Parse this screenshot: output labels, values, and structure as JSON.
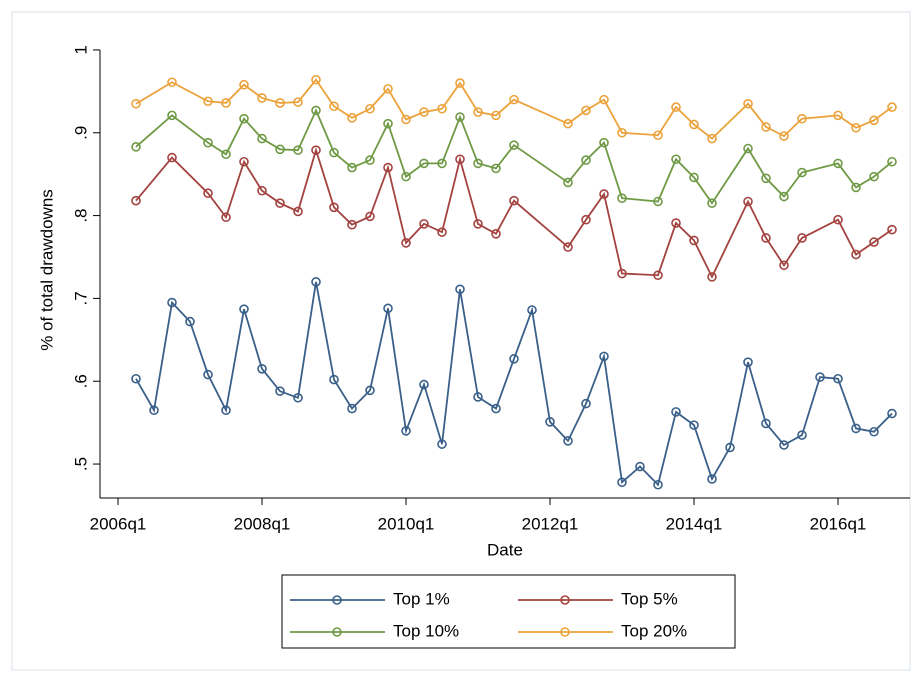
{
  "chart_data": {
    "type": "line",
    "ylabel": "% of total drawdowns",
    "xlabel": "Date",
    "xlim": [
      "2005q4",
      "2017q1"
    ],
    "xticks": [
      "2006q1",
      "2008q1",
      "2010q1",
      "2012q1",
      "2014q1",
      "2016q1"
    ],
    "ylim": [
      0.459,
      1.012
    ],
    "yticks": [
      {
        "value": 0.5,
        "label": ".5"
      },
      {
        "value": 0.6,
        "label": ".6"
      },
      {
        "value": 0.7,
        "label": ".7"
      },
      {
        "value": 0.8,
        "label": ".8"
      },
      {
        "value": 0.9,
        "label": ".9"
      },
      1
    ],
    "grid": false,
    "legend": "bottom",
    "series": [
      {
        "name": "Top 1%",
        "color": "#3a6089",
        "x": [
          "2006q2",
          "2006q3",
          "2006q4",
          "2007q1",
          "2007q2",
          "2007q3",
          "2007q4",
          "2008q1",
          "2008q2",
          "2008q3",
          "2008q4",
          "2009q1",
          "2009q2",
          "2009q3",
          "2009q4",
          "2010q1",
          "2010q2",
          "2010q3",
          "2010q4",
          "2011q1",
          "2011q2",
          "2011q3",
          "2011q4",
          "2012q1",
          "2012q2",
          "2012q3",
          "2012q4",
          "2013q1",
          "2013q2",
          "2013q3",
          "2013q4",
          "2014q1",
          "2014q2",
          "2014q3",
          "2014q4",
          "2015q1",
          "2015q2",
          "2015q3",
          "2015q4",
          "2016q1",
          "2016q2",
          "2016q3",
          "2016q4"
        ],
        "values": [
          0.603,
          0.565,
          0.695,
          0.672,
          0.608,
          0.565,
          0.687,
          0.615,
          0.588,
          0.58,
          0.72,
          0.602,
          0.567,
          0.589,
          0.688,
          0.54,
          0.596,
          0.524,
          0.711,
          0.581,
          0.567,
          0.627,
          0.686,
          0.551,
          0.528,
          0.573,
          0.63,
          0.478,
          0.497,
          0.475,
          0.563,
          0.547,
          0.482,
          0.52,
          0.623,
          0.549,
          0.523,
          0.535,
          0.605,
          0.603,
          0.543,
          0.539,
          0.561
        ]
      },
      {
        "name": "Top 5%",
        "color": "#a3423f",
        "x": [
          "2006q2",
          "2006q4",
          "2007q2",
          "2007q3",
          "2007q4",
          "2008q1",
          "2008q2",
          "2008q3",
          "2008q4",
          "2009q1",
          "2009q2",
          "2009q3",
          "2009q4",
          "2010q1",
          "2010q2",
          "2010q3",
          "2010q4",
          "2011q1",
          "2011q2",
          "2011q3",
          "2012q2",
          "2012q3",
          "2012q4",
          "2013q1",
          "2013q3",
          "2013q4",
          "2014q1",
          "2014q2",
          "2014q4",
          "2015q1",
          "2015q2",
          "2015q3",
          "2016q1",
          "2016q2",
          "2016q3",
          "2016q4"
        ],
        "values": [
          0.818,
          0.87,
          0.827,
          0.798,
          0.865,
          0.83,
          0.815,
          0.805,
          0.879,
          0.81,
          0.789,
          0.799,
          0.858,
          0.767,
          0.79,
          0.78,
          0.868,
          0.79,
          0.778,
          0.818,
          0.762,
          0.795,
          0.826,
          0.73,
          0.728,
          0.791,
          0.77,
          0.726,
          0.817,
          0.773,
          0.74,
          0.773,
          0.795,
          0.753,
          0.768,
          0.783
        ]
      },
      {
        "name": "Top 10%",
        "color": "#6f9a45",
        "x": [
          "2006q2",
          "2006q4",
          "2007q2",
          "2007q3",
          "2007q4",
          "2008q1",
          "2008q2",
          "2008q3",
          "2008q4",
          "2009q1",
          "2009q2",
          "2009q3",
          "2009q4",
          "2010q1",
          "2010q2",
          "2010q3",
          "2010q4",
          "2011q1",
          "2011q2",
          "2011q3",
          "2012q2",
          "2012q3",
          "2012q4",
          "2013q1",
          "2013q3",
          "2013q4",
          "2014q1",
          "2014q2",
          "2014q4",
          "2015q1",
          "2015q2",
          "2015q3",
          "2016q1",
          "2016q2",
          "2016q3",
          "2016q4"
        ],
        "values": [
          0.883,
          0.921,
          0.888,
          0.874,
          0.917,
          0.893,
          0.88,
          0.879,
          0.927,
          0.876,
          0.858,
          0.867,
          0.911,
          0.847,
          0.863,
          0.863,
          0.919,
          0.863,
          0.857,
          0.885,
          0.84,
          0.867,
          0.888,
          0.821,
          0.817,
          0.868,
          0.846,
          0.815,
          0.881,
          0.845,
          0.823,
          0.852,
          0.863,
          0.834,
          0.847,
          0.865
        ]
      },
      {
        "name": "Top 20%",
        "color": "#eba23a",
        "x": [
          "2006q2",
          "2006q4",
          "2007q2",
          "2007q3",
          "2007q4",
          "2008q1",
          "2008q2",
          "2008q3",
          "2008q4",
          "2009q1",
          "2009q2",
          "2009q3",
          "2009q4",
          "2010q1",
          "2010q2",
          "2010q3",
          "2010q4",
          "2011q1",
          "2011q2",
          "2011q3",
          "2012q2",
          "2012q3",
          "2012q4",
          "2013q1",
          "2013q3",
          "2013q4",
          "2014q1",
          "2014q2",
          "2014q4",
          "2015q1",
          "2015q2",
          "2015q3",
          "2016q1",
          "2016q2",
          "2016q3",
          "2016q4"
        ],
        "values": [
          0.935,
          0.961,
          0.938,
          0.936,
          0.958,
          0.942,
          0.936,
          0.937,
          0.964,
          0.932,
          0.918,
          0.929,
          0.953,
          0.916,
          0.925,
          0.929,
          0.96,
          0.925,
          0.921,
          0.94,
          0.911,
          0.927,
          0.94,
          0.9,
          0.897,
          0.931,
          0.91,
          0.893,
          0.935,
          0.907,
          0.896,
          0.917,
          0.921,
          0.906,
          0.915,
          0.931
        ]
      }
    ]
  }
}
